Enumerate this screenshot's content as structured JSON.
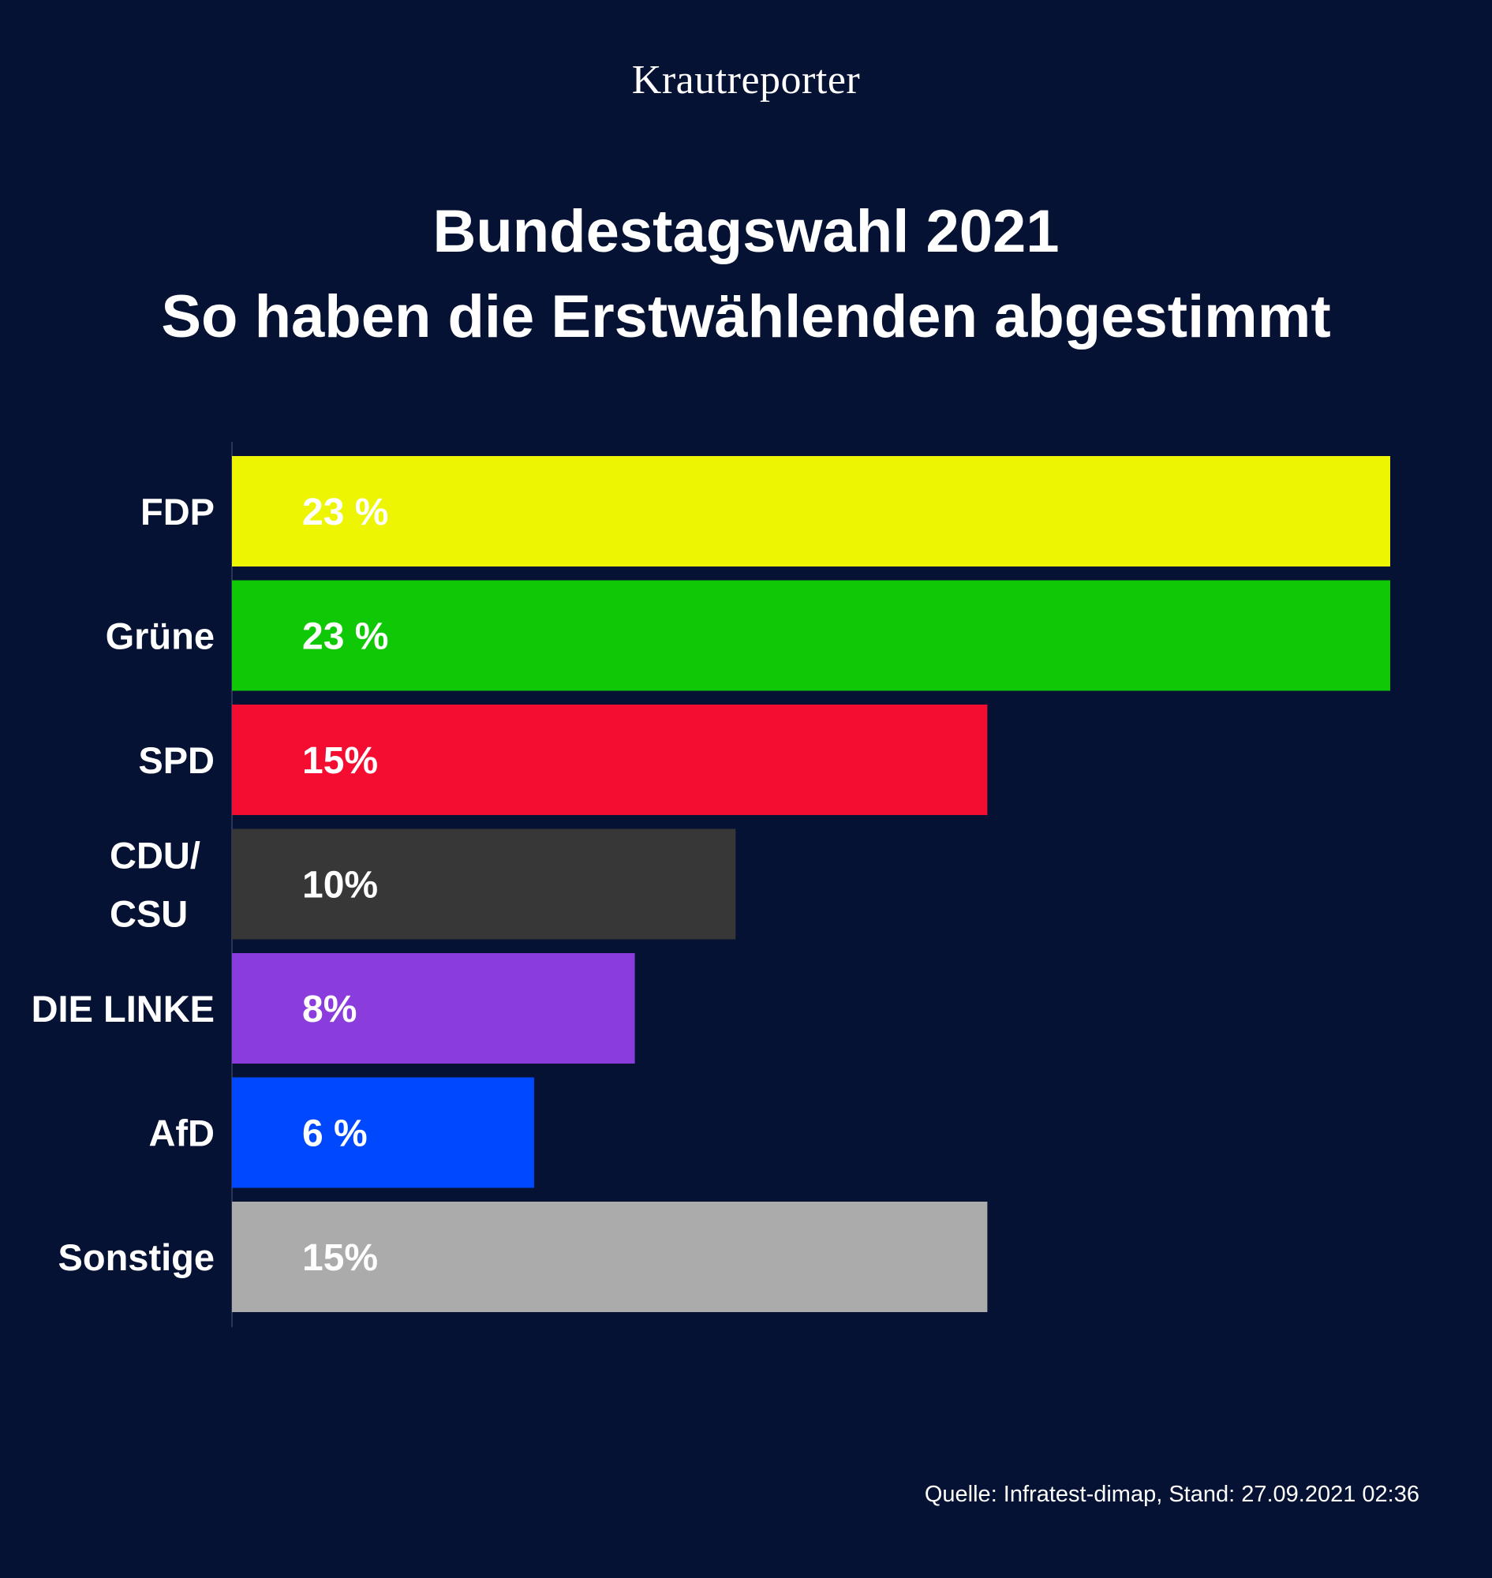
{
  "logo": "Krautreporter",
  "title_line1": "Bundestagswahl 2021",
  "title_line2": "So haben die Erstwählenden abgestimmt",
  "source": "Quelle: Infratest-dimap, Stand: 27.09.2021 02:36",
  "chart_data": {
    "type": "bar",
    "orientation": "horizontal",
    "title": "Bundestagswahl 2021 So haben die Erstwählenden abgestimmt",
    "categories": [
      "FDP",
      "Grüne",
      "SPD",
      "CDU/ CSU",
      "DIE LINKE",
      "AfD",
      "Sonstige"
    ],
    "category_lines": [
      [
        "FDP"
      ],
      [
        "Grüne"
      ],
      [
        "SPD"
      ],
      [
        "CDU/",
        "CSU"
      ],
      [
        "DIE LINKE"
      ],
      [
        "AfD"
      ],
      [
        "Sonstige"
      ]
    ],
    "values": [
      23,
      23,
      15,
      10,
      8,
      6,
      15
    ],
    "value_labels": [
      "23 %",
      "23 %",
      "15%",
      "10%",
      "8%",
      "6 %",
      "15%"
    ],
    "colors": [
      "#eef502",
      "#10c906",
      "#f50c31",
      "#383737",
      "#8a3ddc",
      "#0048fe",
      "#ababab"
    ],
    "unit": "%",
    "xlim": [
      0,
      23
    ],
    "xlabel": "",
    "ylabel": "",
    "grid": false,
    "legend": "none"
  }
}
